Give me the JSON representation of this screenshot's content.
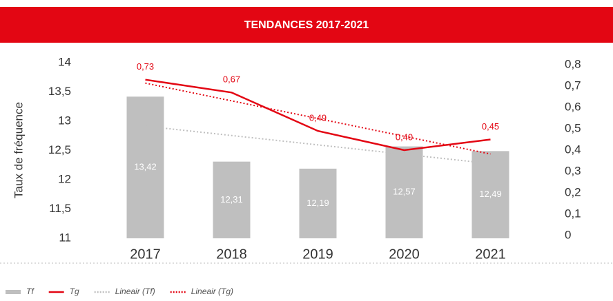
{
  "chart_data": {
    "type": "combo",
    "title": "TENDANCES 2017-2021",
    "y_label": "Taux de fréquence",
    "categories": [
      "2017",
      "2018",
      "2019",
      "2020",
      "2021"
    ],
    "series": [
      {
        "name": "Tf",
        "type": "bar",
        "axis": "y",
        "color": "#bfbfbf",
        "values": [
          13.42,
          12.31,
          12.19,
          12.57,
          12.49
        ],
        "value_labels": [
          "13,42",
          "12,31",
          "12,19",
          "12,57",
          "12,49"
        ]
      },
      {
        "name": "Tg",
        "type": "line",
        "axis": "y2",
        "color": "#e30613",
        "values": [
          0.73,
          0.67,
          0.49,
          0.4,
          0.45
        ],
        "value_labels": [
          "0,73",
          "0,67",
          "0,49",
          "0,40",
          "0,45"
        ]
      },
      {
        "name": "Lineair (Tf)",
        "type": "line",
        "dash": true,
        "axis": "y",
        "color": "#bfbfbf",
        "values": [
          12.916,
          12.756,
          12.596,
          12.436,
          12.276
        ]
      },
      {
        "name": "Lineair (Tg)",
        "type": "line",
        "dash": true,
        "axis": "y2",
        "color": "#e30613",
        "values": [
          0.714,
          0.631,
          0.548,
          0.465,
          0.382
        ]
      }
    ],
    "ylim": [
      11,
      14
    ],
    "yticks": [
      11,
      {
        "value": 11.5,
        "label": "11,5"
      },
      12,
      {
        "value": 12.5,
        "label": "12,5"
      },
      13,
      {
        "value": 13.5,
        "label": "13,5"
      },
      14
    ],
    "y2lim": [
      0,
      0.8
    ],
    "y2ticks": [
      0,
      {
        "value": 0.1,
        "label": "0,1"
      },
      {
        "value": 0.2,
        "label": "0,2"
      },
      {
        "value": 0.3,
        "label": "0,3"
      },
      {
        "value": 0.4,
        "label": "0,4"
      },
      {
        "value": 0.5,
        "label": "0,5"
      },
      {
        "value": 0.6,
        "label": "0,6"
      },
      {
        "value": 0.7,
        "label": "0,7"
      },
      {
        "value": 0.8,
        "label": "0,8"
      }
    ],
    "legend": "bottom-left"
  }
}
